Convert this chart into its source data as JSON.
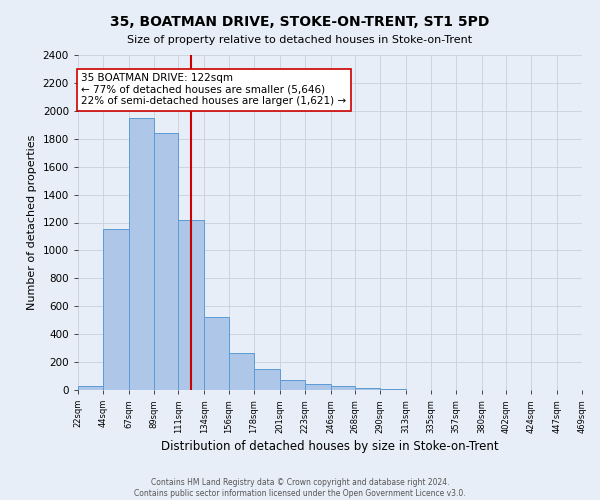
{
  "title": "35, BOATMAN DRIVE, STOKE-ON-TRENT, ST1 5PD",
  "subtitle": "Size of property relative to detached houses in Stoke-on-Trent",
  "xlabel": "Distribution of detached houses by size in Stoke-on-Trent",
  "ylabel": "Number of detached properties",
  "bin_edges": [
    22,
    44,
    67,
    89,
    111,
    134,
    156,
    178,
    201,
    223,
    246,
    268,
    290,
    313,
    335,
    357,
    380,
    402,
    424,
    447,
    469
  ],
  "bar_heights": [
    30,
    1150,
    1950,
    1840,
    1220,
    520,
    265,
    150,
    75,
    45,
    30,
    15,
    8,
    3,
    2,
    1,
    0,
    0,
    0,
    0
  ],
  "bar_color": "#aec6e8",
  "bar_edgecolor": "#5b9bd5",
  "background_color": "#e8eef7",
  "grid_color": "#c8d0dc",
  "vline_x": 122,
  "vline_color": "#cc0000",
  "annotation_title": "35 BOATMAN DRIVE: 122sqm",
  "annotation_line1": "← 77% of detached houses are smaller (5,646)",
  "annotation_line2": "22% of semi-detached houses are larger (1,621) →",
  "annotation_box_edgecolor": "#cc0000",
  "ylim": [
    0,
    2400
  ],
  "yticks": [
    0,
    200,
    400,
    600,
    800,
    1000,
    1200,
    1400,
    1600,
    1800,
    2000,
    2200,
    2400
  ],
  "footer_line1": "Contains HM Land Registry data © Crown copyright and database right 2024.",
  "footer_line2": "Contains public sector information licensed under the Open Government Licence v3.0."
}
